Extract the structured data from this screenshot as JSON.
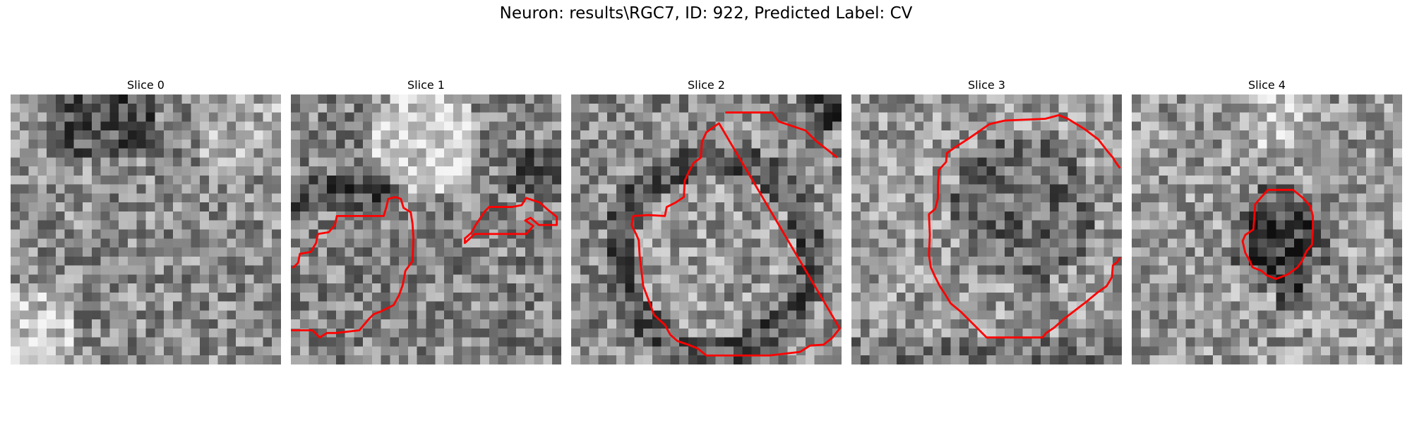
{
  "figure": {
    "title": "Neuron: results\\RGC7, ID: 922, Predicted Label: CV"
  },
  "colors": {
    "contour": "#ff0000",
    "background": "#ffffff",
    "image_colormap": "gray"
  },
  "slices": [
    {
      "title": "Slice 0",
      "has_contour": false,
      "pattern": "noise-bright-corners"
    },
    {
      "title": "Slice 1",
      "has_contour": true,
      "pattern": "bright-top-blob"
    },
    {
      "title": "Slice 2",
      "has_contour": true,
      "pattern": "dark-ring"
    },
    {
      "title": "Slice 3",
      "has_contour": true,
      "pattern": "darker-core"
    },
    {
      "title": "Slice 4",
      "has_contour": true,
      "pattern": "small-dark-core"
    }
  ]
}
